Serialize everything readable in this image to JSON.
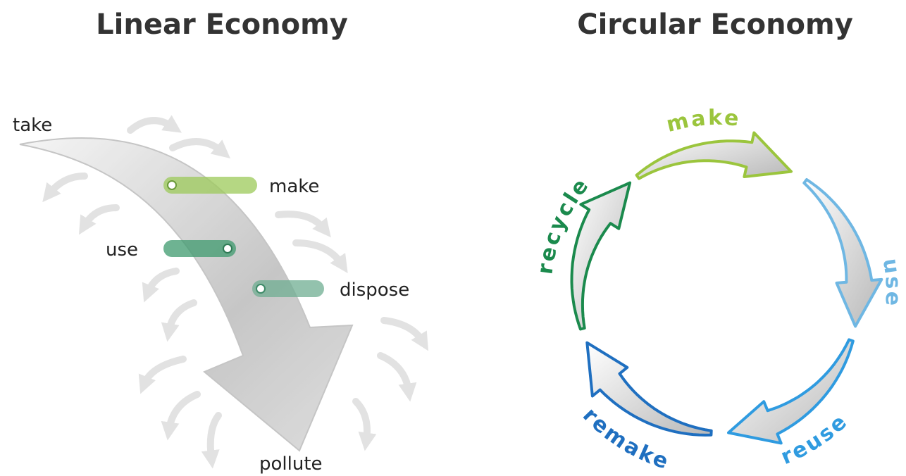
{
  "linear": {
    "title": "Linear Economy",
    "take": "take",
    "make": "make",
    "use": "use",
    "dispose": "dispose",
    "pollute": "pollute"
  },
  "circular": {
    "title": "Circular Economy",
    "make": "make",
    "use": "use",
    "reuse": "reuse",
    "remake": "remake",
    "recycle": "recycle"
  }
}
